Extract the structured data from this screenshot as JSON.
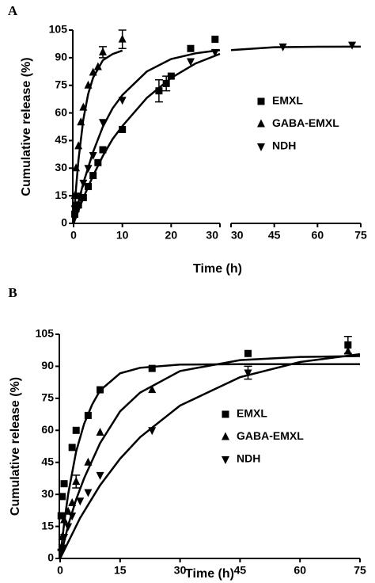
{
  "chart_data": [
    {
      "type": "scatter",
      "panel_label": "A",
      "xlabel": "Time (h)",
      "ylabel": "Cumulative release (%)",
      "x_segments": [
        {
          "xlim": [
            0,
            30
          ],
          "xticks": [
            0,
            10,
            20,
            30
          ]
        },
        {
          "xlim": [
            30,
            75
          ],
          "xticks": [
            30,
            45,
            60,
            75
          ]
        }
      ],
      "ylim": [
        0,
        105
      ],
      "yticks": [
        0,
        15,
        30,
        45,
        60,
        75,
        90,
        105
      ],
      "legend": "right",
      "series": [
        {
          "name": "EMXL",
          "marker": "square",
          "color": "#000000",
          "x": [
            0.25,
            0.5,
            1,
            2,
            3,
            4,
            5,
            6,
            10,
            17.5,
            19,
            20,
            24,
            29
          ],
          "values": [
            5,
            8,
            10,
            14,
            20,
            26,
            33,
            40,
            51,
            72,
            76,
            80,
            95,
            100
          ],
          "errors": [
            null,
            null,
            null,
            null,
            null,
            null,
            null,
            null,
            null,
            6,
            4,
            null,
            null,
            null
          ],
          "fit": {
            "x": [
              0,
              2,
              4,
              6,
              8,
              10,
              15,
              20,
              25,
              30
            ],
            "values": [
              0,
              13.8,
              25.9,
              36.6,
              45.8,
              52.9,
              68.1,
              79,
              86.9,
              92.1
            ]
          }
        },
        {
          "name": "GABA-EMXL",
          "marker": "triangle-up",
          "color": "#000000",
          "x": [
            0.25,
            0.5,
            1,
            1.5,
            2,
            3,
            4,
            5,
            6,
            10
          ],
          "values": [
            15,
            30,
            42,
            55,
            63,
            75,
            82,
            85,
            93,
            100
          ],
          "errors": [
            null,
            null,
            null,
            null,
            null,
            null,
            null,
            null,
            3,
            5
          ],
          "fit": {
            "x": [
              0,
              0.5,
              1,
              2,
              3,
              4,
              6,
              8,
              10
            ],
            "values": [
              0,
              19,
              34.6,
              56.4,
              70.4,
              79.2,
              88.6,
              92,
              93.9
            ]
          }
        },
        {
          "name": "NDH",
          "marker": "triangle-down",
          "color": "#000000",
          "x": [
            0.25,
            0.5,
            1,
            2,
            3,
            4,
            6,
            10,
            24,
            29,
            48,
            72
          ],
          "values": [
            8,
            10,
            15,
            22,
            30,
            37,
            55,
            67,
            88,
            93,
            96,
            97
          ],
          "errors": [
            null,
            null,
            null,
            null,
            null,
            null,
            null,
            null,
            null,
            null,
            null,
            null
          ],
          "fit": {
            "x": [
              0,
              1,
              2,
              4,
              6,
              8,
              10,
              15,
              20,
              25,
              30,
              30,
              30,
              45,
              60,
              75
            ],
            "values": [
              0,
              11.7,
              21.9,
              38.8,
              52.5,
              62.5,
              69.7,
              82.5,
              89.3,
              92.4,
              94.1,
              null,
              94.1,
              95.7,
              95.96,
              96
            ]
          }
        }
      ]
    },
    {
      "type": "scatter",
      "panel_label": "B",
      "xlabel": "Time (h)",
      "ylabel": "Cumulative release (%)",
      "xlim": [
        0,
        75
      ],
      "xticks": [
        0,
        15,
        30,
        45,
        60,
        75
      ],
      "ylim": [
        0,
        105
      ],
      "yticks": [
        0,
        15,
        30,
        45,
        60,
        75,
        90,
        105
      ],
      "legend": "right",
      "series": [
        {
          "name": "EMXL",
          "marker": "square",
          "color": "#000000",
          "x": [
            0.25,
            0.5,
            1,
            3,
            4,
            7,
            10,
            23,
            47,
            72
          ],
          "values": [
            20,
            29,
            35,
            52,
            60,
            67,
            79,
            89,
            96,
            100
          ],
          "errors": [
            null,
            null,
            null,
            null,
            null,
            null,
            null,
            null,
            null,
            4
          ],
          "fit": {
            "x": [
              0,
              1,
              2,
              4,
              6,
              8,
              10,
              15,
              20,
              30,
              45,
              75
            ],
            "values": [
              0,
              16.5,
              30,
              50,
              63,
              72,
              78.7,
              86.7,
              89.3,
              90.8,
              91,
              91
            ]
          }
        },
        {
          "name": "GABA-EMXL",
          "marker": "triangle-up",
          "color": "#000000",
          "x": [
            0.25,
            0.5,
            1,
            2,
            3,
            4,
            7,
            10,
            23,
            72
          ],
          "values": [
            5,
            10,
            18,
            22,
            26,
            36,
            45,
            59,
            79,
            97
          ],
          "errors": [
            null,
            null,
            null,
            null,
            null,
            3,
            null,
            null,
            null,
            null
          ],
          "fit": {
            "x": [
              0,
              2,
              4,
              6,
              10,
              15,
              20,
              30,
              45,
              60,
              75
            ],
            "values": [
              0,
              15.4,
              27.6,
              37.5,
              54,
              68.9,
              77.7,
              87.8,
              92.9,
              94.4,
              94.8
            ]
          }
        },
        {
          "name": "NDH",
          "marker": "triangle-down",
          "color": "#000000",
          "x": [
            0.25,
            0.5,
            1,
            2,
            3,
            5,
            7,
            10,
            23,
            47
          ],
          "values": [
            3,
            5,
            10,
            15,
            20,
            27,
            31,
            39,
            60,
            87
          ],
          "errors": [
            null,
            null,
            null,
            null,
            null,
            null,
            null,
            null,
            null,
            3
          ],
          "fit": {
            "x": [
              0,
              5,
              10,
              15,
              20,
              30,
              45,
              60,
              75
            ],
            "values": [
              0,
              19,
              34.3,
              46.7,
              56.8,
              71.6,
              84.9,
              92,
              95.7
            ]
          }
        }
      ]
    }
  ]
}
